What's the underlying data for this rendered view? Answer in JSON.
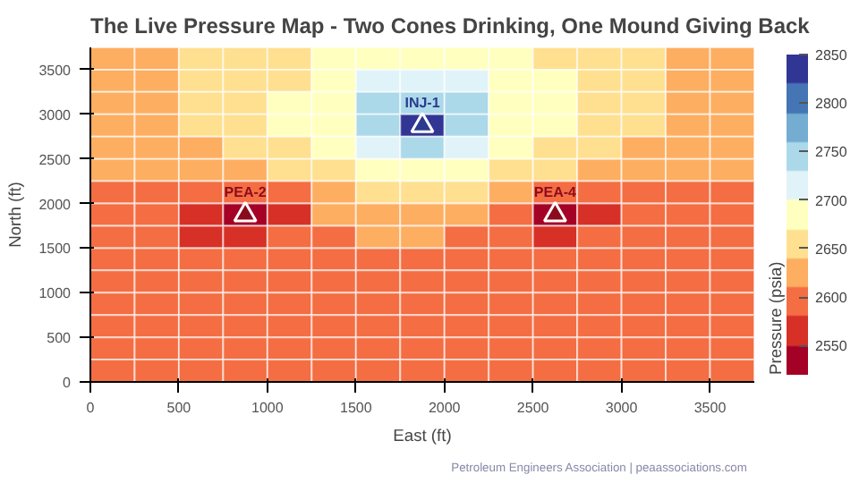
{
  "chart_data": {
    "type": "heatmap",
    "title": "The Live Pressure Map - Two Cones Drinking, One Mound Giving Back",
    "xlabel": "East (ft)",
    "ylabel": "North (ft)",
    "clabel": "Pressure (psia)",
    "x": [
      125,
      375,
      625,
      875,
      1125,
      1375,
      1625,
      1875,
      2125,
      2375,
      2625,
      2875,
      3125,
      3375,
      3625
    ],
    "xlim": [
      0,
      3750
    ],
    "ylim": [
      0,
      3750
    ],
    "xticks": [
      0,
      500,
      1000,
      1500,
      2000,
      2500,
      3000,
      3500
    ],
    "yticks": [
      0,
      500,
      1000,
      1500,
      2000,
      2500,
      3000,
      3500
    ],
    "clim": [
      2520,
      2850
    ],
    "cticks": [
      2550,
      2600,
      2650,
      2700,
      2750,
      2800,
      2850
    ],
    "cells": [
      [
        2632,
        2635,
        2640,
        2648,
        2660,
        2675,
        2690,
        2695,
        2690,
        2678,
        2662,
        2648,
        2640,
        2635,
        2632
      ],
      [
        2632,
        2636,
        2642,
        2652,
        2668,
        2690,
        2705,
        2712,
        2705,
        2690,
        2670,
        2652,
        2642,
        2636,
        2632
      ],
      [
        2630,
        2636,
        2643,
        2655,
        2672,
        2700,
        2735,
        2745,
        2735,
        2700,
        2672,
        2655,
        2643,
        2636,
        2630
      ],
      [
        2628,
        2634,
        2642,
        2655,
        2675,
        2700,
        2740,
        2850,
        2740,
        2700,
        2675,
        2655,
        2642,
        2634,
        2628
      ],
      [
        2625,
        2630,
        2638,
        2650,
        2665,
        2690,
        2710,
        2730,
        2710,
        2690,
        2665,
        2650,
        2638,
        2630,
        2625
      ],
      [
        2615,
        2620,
        2625,
        2635,
        2648,
        2665,
        2675,
        2680,
        2675,
        2665,
        2648,
        2635,
        2625,
        2620,
        2615
      ],
      [
        2605,
        2600,
        2592,
        2590,
        2610,
        2635,
        2648,
        2652,
        2645,
        2625,
        2600,
        2590,
        2600,
        2605,
        2608
      ],
      [
        2598,
        2580,
        2560,
        2520,
        2570,
        2615,
        2632,
        2635,
        2625,
        2590,
        2525,
        2570,
        2595,
        2603,
        2608
      ],
      [
        2600,
        2588,
        2570,
        2560,
        2580,
        2605,
        2615,
        2618,
        2610,
        2590,
        2570,
        2585,
        2598,
        2603,
        2606
      ],
      [
        2603,
        2596,
        2588,
        2582,
        2590,
        2600,
        2605,
        2608,
        2605,
        2596,
        2590,
        2595,
        2600,
        2604,
        2606
      ],
      [
        2605,
        2602,
        2598,
        2596,
        2598,
        2602,
        2604,
        2605,
        2604,
        2600,
        2598,
        2600,
        2603,
        2605,
        2607
      ],
      [
        2606,
        2604,
        2602,
        2601,
        2602,
        2604,
        2605,
        2606,
        2605,
        2603,
        2602,
        2603,
        2605,
        2606,
        2607
      ],
      [
        2607,
        2605,
        2604,
        2603,
        2604,
        2605,
        2606,
        2606,
        2606,
        2605,
        2604,
        2605,
        2606,
        2607,
        2607
      ],
      [
        2607,
        2606,
        2605,
        2605,
        2605,
        2606,
        2606,
        2607,
        2606,
        2606,
        2605,
        2606,
        2606,
        2607,
        2608
      ],
      [
        2607,
        2607,
        2606,
        2606,
        2606,
        2606,
        2607,
        2607,
        2607,
        2606,
        2606,
        2606,
        2607,
        2607,
        2608
      ]
    ],
    "series": [
      {
        "type": "scatter",
        "name": "INJ-1",
        "x": [
          1875
        ],
        "values": [
          2875
        ],
        "color": "#2b3a8f",
        "marker": "triangle"
      },
      {
        "type": "scatter",
        "name": "PEA-2",
        "x": [
          875
        ],
        "values": [
          1875
        ],
        "color": "#8b0a1e",
        "marker": "triangle"
      },
      {
        "type": "scatter",
        "name": "PEA-4",
        "x": [
          2625
        ],
        "values": [
          1875
        ],
        "color": "#8b0a1e",
        "marker": "triangle"
      }
    ],
    "annotations": [
      "Petroleum Engineers Association  |  peaassociations.com"
    ]
  }
}
